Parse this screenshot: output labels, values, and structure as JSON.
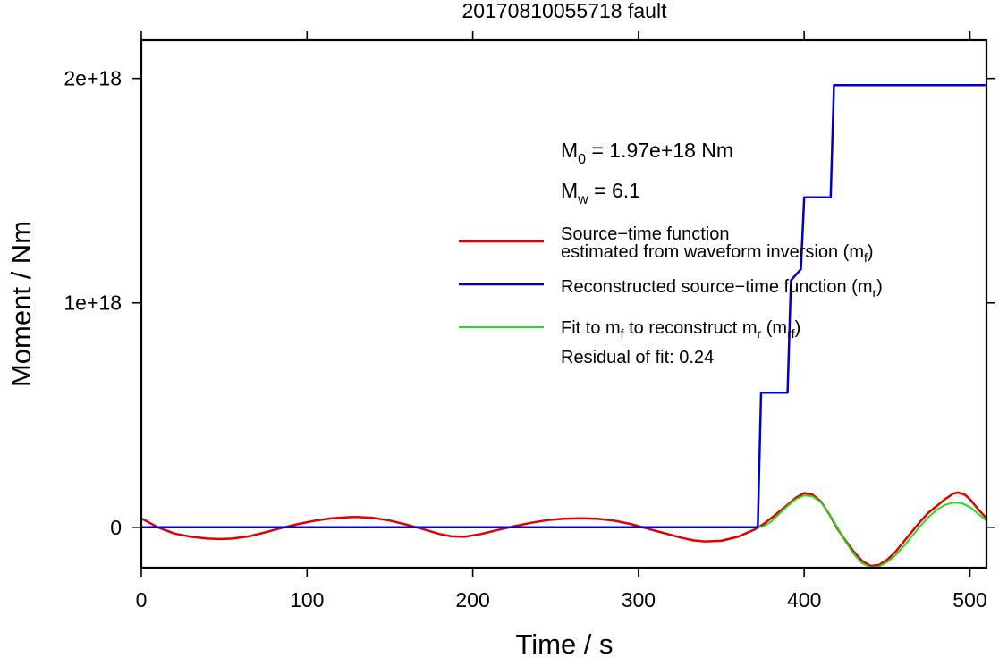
{
  "chart_data": {
    "type": "line",
    "title": "20170810055718 fault",
    "xlabel": "Time / s",
    "ylabel": "Moment / Nm",
    "xlim": [
      0,
      510
    ],
    "ylim": [
      -1.8e+17,
      2.17e+18
    ],
    "x_ticks": [
      0,
      100,
      200,
      300,
      400,
      500
    ],
    "x_tick_labels": [
      "0",
      "100",
      "200",
      "300",
      "400",
      "500"
    ],
    "y_ticks": [
      0,
      1e+18,
      2e+18
    ],
    "y_tick_labels": [
      "0",
      "1e+18",
      "2e+18"
    ],
    "grid": false,
    "legend_placement": "right",
    "annotations": {
      "m0": {
        "prefix": "M",
        "sub": "0",
        "text": " = 1.97e+18 Nm"
      },
      "mw": {
        "prefix": "M",
        "sub": "w",
        "text": " = 6.1"
      },
      "residual": "Residual of fit: 0.24"
    },
    "legend": {
      "red": {
        "line1": "Source−time function",
        "line2": "estimated from waveform inversion (m",
        "line2_sub": "f",
        "line2_end": ")"
      },
      "blue": {
        "text": "Reconstructed source−time function (m",
        "sub": "r",
        "end": ")"
      },
      "green": {
        "p1": "Fit to m",
        "s1": "f",
        "p2": " to reconstruct m",
        "s2": "r",
        "p3": " (m",
        "s3": "rf",
        "p4": ")"
      }
    },
    "series": [
      {
        "key": "red",
        "color": "#e00000",
        "x": [
          0,
          10,
          20,
          30,
          40,
          47,
          55,
          65,
          75,
          85,
          95,
          105,
          115,
          125,
          130,
          140,
          150,
          160,
          170,
          180,
          187,
          195,
          205,
          215,
          225,
          235,
          245,
          255,
          265,
          275,
          285,
          295,
          305,
          315,
          325,
          333,
          340,
          350,
          360,
          370,
          375,
          380,
          385,
          390,
          395,
          400,
          405,
          410,
          415,
          420,
          425,
          430,
          435,
          440,
          445,
          450,
          455,
          460,
          465,
          470,
          475,
          480,
          485,
          490,
          493,
          497,
          500,
          505,
          510
        ],
        "values": [
          4e+16,
          0.0,
          -2.8e+16,
          -4.2e+16,
          -5e+16,
          -5.2e+16,
          -5e+16,
          -4e+16,
          -2.2e+16,
          -2000000000000000.0,
          1.5e+16,
          3e+16,
          4e+16,
          4.5e+16,
          4.6e+16,
          4.2e+16,
          3e+16,
          1.2e+16,
          -8000000000000000.0,
          -3e+16,
          -4e+16,
          -4.2e+16,
          -3e+16,
          -1.2e+16,
          5000000000000000.0,
          2e+16,
          3.2e+16,
          3.8e+16,
          4e+16,
          3.8e+16,
          3e+16,
          1.5e+16,
          -5000000000000000.0,
          -2.5e+16,
          -4.5e+16,
          -5.8e+16,
          -6.3e+16,
          -6e+16,
          -4.2e+16,
          -1e+16,
          1.2e+16,
          4e+16,
          7e+16,
          1e+17,
          1.32e+17,
          1.52e+17,
          1.45e+17,
          1.15e+17,
          6e+16,
          -5000000000000000.0,
          -6e+16,
          -1.1e+17,
          -1.5e+17,
          -1.72e+17,
          -1.68e+17,
          -1.45e+17,
          -1.1e+17,
          -6.5e+16,
          -2e+16,
          2.5e+16,
          6.5e+16,
          9.5e+16,
          1.25e+17,
          1.5e+17,
          1.55e+17,
          1.45e+17,
          1.25e+17,
          8e+16,
          4e+16
        ]
      },
      {
        "key": "green",
        "color": "#22dd22",
        "x": [
          370,
          375,
          380,
          385,
          390,
          395,
          400,
          405,
          410,
          415,
          420,
          425,
          430,
          435,
          440,
          445,
          450,
          455,
          460,
          465,
          470,
          475,
          480,
          485,
          490,
          495,
          500,
          505,
          510
        ],
        "values": [
          0.0,
          2000000000000000.0,
          2.5e+16,
          6e+16,
          9.5e+16,
          1.25e+17,
          1.42e+17,
          1.38e+17,
          1.12e+17,
          6.2e+16,
          0.0,
          -6.5e+16,
          -1.2e+17,
          -1.6e+17,
          -1.78e+17,
          -1.75e+17,
          -1.55e+17,
          -1.25e+17,
          -8.5e+16,
          -4e+16,
          5000000000000000.0,
          4.5e+16,
          7.8e+16,
          1e+17,
          1.1e+17,
          1.08e+17,
          9e+16,
          6e+16,
          3e+16
        ]
      },
      {
        "key": "blue",
        "color": "#0000cc",
        "x": [
          0,
          372,
          374,
          390,
          392,
          398,
          400,
          416,
          418,
          510
        ],
        "values": [
          0,
          0,
          6e+17,
          6e+17,
          1.1e+18,
          1.15e+18,
          1.47e+18,
          1.47e+18,
          1.97e+18,
          1.97e+18
        ]
      }
    ]
  }
}
